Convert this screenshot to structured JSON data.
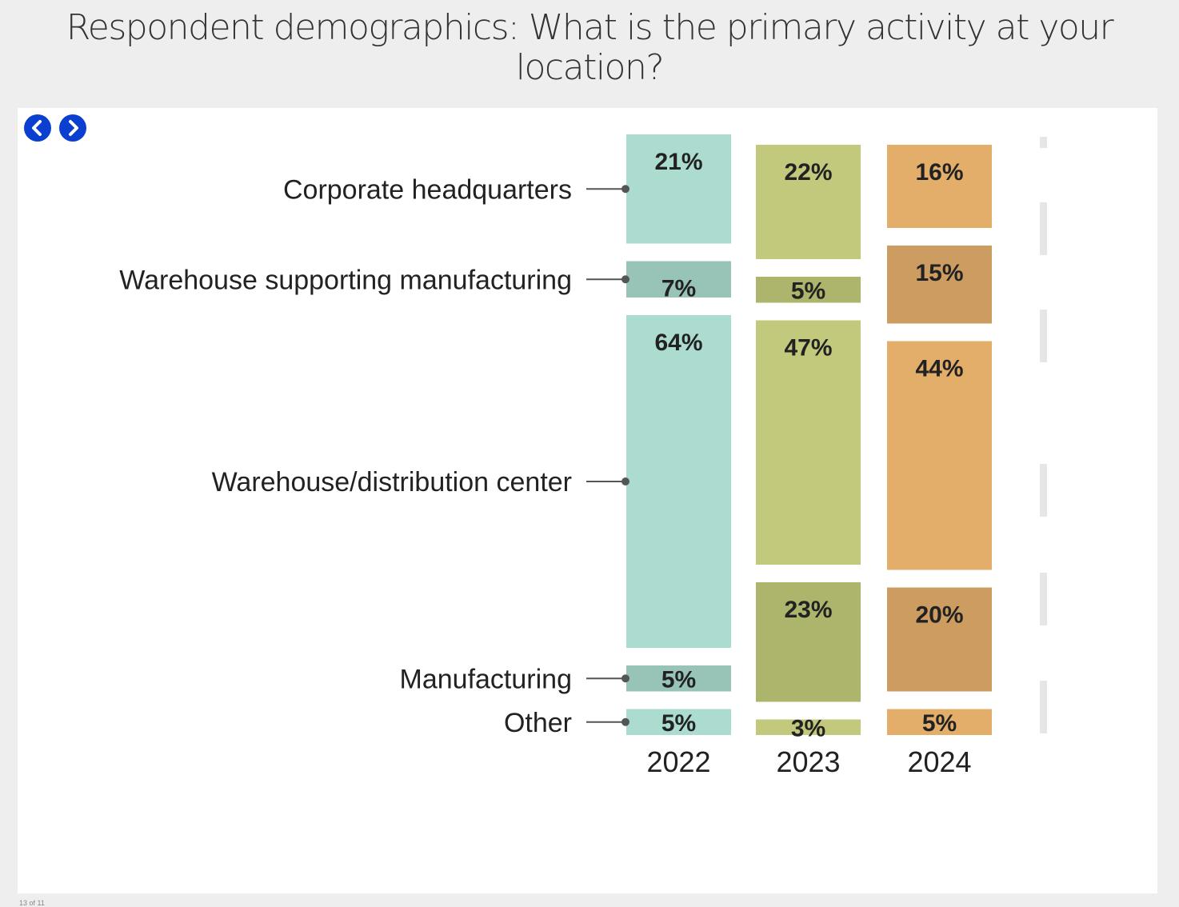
{
  "page": {
    "title": "Respondent demographics: What is the primary activity at your location?",
    "nav": {
      "prev_icon": "chevron-left-icon",
      "next_icon": "chevron-right-icon",
      "accent": "#0a3fcf"
    },
    "footer_note": "13 of 11"
  },
  "chart_data": {
    "type": "bar",
    "stacked": true,
    "normalized": true,
    "title": "",
    "xlabel": "",
    "ylabel": "",
    "x": [
      "2022",
      "2023",
      "2024"
    ],
    "categories_top_to_bottom": [
      "Corporate headquarters",
      "Warehouse supporting manufacturing",
      "Warehouse/distribution center",
      "Manufacturing",
      "Other"
    ],
    "series": [
      {
        "name": "Corporate headquarters",
        "values": [
          21,
          22,
          16
        ]
      },
      {
        "name": "Warehouse supporting manufacturing",
        "values": [
          7,
          5,
          15
        ]
      },
      {
        "name": "Warehouse/distribution center",
        "values": [
          64,
          47,
          44
        ]
      },
      {
        "name": "Manufacturing",
        "values": [
          5,
          23,
          20
        ]
      },
      {
        "name": "Other",
        "values": [
          5,
          3,
          5
        ]
      }
    ],
    "value_labels": [
      [
        "21%",
        "22%",
        "16%"
      ],
      [
        "7%",
        "5%",
        "15%"
      ],
      [
        "64%",
        "47%",
        "44%"
      ],
      [
        "5%",
        "23%",
        "20%"
      ],
      [
        "5%",
        "3%",
        "5%"
      ]
    ],
    "colors": {
      "2022": {
        "light": "#acdbcf",
        "dark": "#98c4b8"
      },
      "2023": {
        "light": "#c3c97c",
        "dark": "#adb46b"
      },
      "2024": {
        "light": "#e3ad6a",
        "dark": "#cc9c60"
      }
    },
    "category_shade": [
      "light",
      "dark",
      "light",
      "dark",
      "light"
    ],
    "legend": "labels-left-of-2022-column",
    "grid": false
  }
}
